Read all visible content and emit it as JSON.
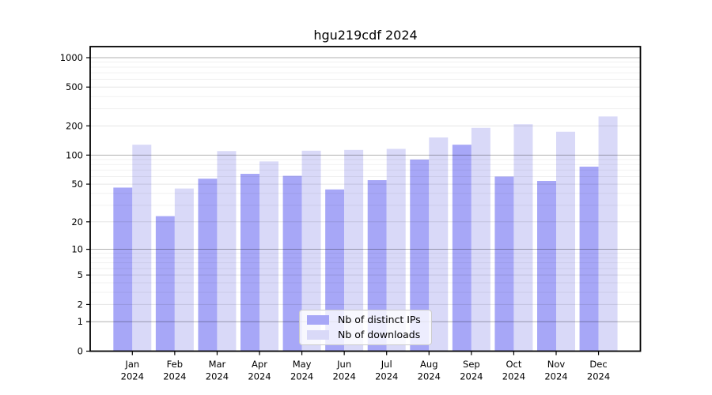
{
  "chart_data": {
    "type": "bar",
    "title": "hgu219cdf 2024",
    "categories": [
      "Jan",
      "Feb",
      "Mar",
      "Apr",
      "May",
      "Jun",
      "Jul",
      "Aug",
      "Sep",
      "Oct",
      "Nov",
      "Dec"
    ],
    "category_year": "2024",
    "series": [
      {
        "name": "Nb of distinct IPs",
        "color": "#a7a7f7",
        "values": [
          46,
          23,
          57,
          64,
          61,
          44,
          55,
          90,
          128,
          60,
          54,
          76
        ]
      },
      {
        "name": "Nb of downloads",
        "color": "#d9d9f8",
        "values": [
          128,
          45,
          110,
          86,
          111,
          113,
          116,
          152,
          191,
          208,
          174,
          250
        ]
      }
    ],
    "yscale": "log1p",
    "y_ticks": [
      0,
      1,
      2,
      5,
      10,
      20,
      50,
      100,
      200,
      500,
      1000
    ],
    "ylim": [
      0,
      1000
    ],
    "grid": true,
    "legend_position": "bottom-center",
    "frame_color": "#000000",
    "strong_grid_color": "rgba(0,0,0,0.30)",
    "mid_grid_color": "rgba(0,0,0,0.10)",
    "minor_grid_color": "rgba(0,0,0,0.06)"
  }
}
